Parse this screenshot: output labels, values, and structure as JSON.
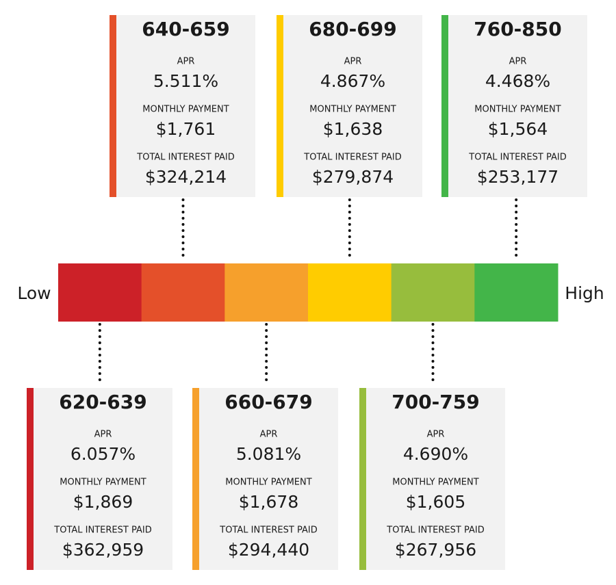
{
  "scale": {
    "low": "Low",
    "high": "High"
  },
  "labels": {
    "apr": "APR",
    "monthly_payment": "MONTHLY PAYMENT",
    "total_interest": "TOTAL INTEREST PAID"
  },
  "tiers": [
    {
      "range": "620-639",
      "apr": "6.057%",
      "monthly_payment": "$1,869",
      "total_interest": "$362,959",
      "color": "#cc2128"
    },
    {
      "range": "640-659",
      "apr": "5.511%",
      "monthly_payment": "$1,761",
      "total_interest": "$324,214",
      "color": "#e4502a"
    },
    {
      "range": "660-679",
      "apr": "5.081%",
      "monthly_payment": "$1,678",
      "total_interest": "$294,440",
      "color": "#f6a02c"
    },
    {
      "range": "680-699",
      "apr": "4.867%",
      "monthly_payment": "$1,638",
      "total_interest": "$279,874",
      "color": "#ffcc00"
    },
    {
      "range": "700-759",
      "apr": "4.690%",
      "monthly_payment": "$1,605",
      "total_interest": "$267,956",
      "color": "#97bd3d"
    },
    {
      "range": "760-850",
      "apr": "4.468%",
      "monthly_payment": "$1,564",
      "total_interest": "$253,177",
      "color": "#43b549"
    }
  ]
}
